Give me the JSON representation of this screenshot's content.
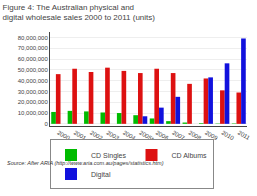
{
  "chart_data": {
    "type": "bar",
    "title": "Figure 4: The Australian physical and digital wholesale sales 2000 to 2011 (units)",
    "categories": [
      "2000",
      "2001",
      "2002",
      "2003",
      "2004",
      "2005*",
      "2006",
      "2007",
      "2008",
      "2009",
      "2010",
      "2011"
    ],
    "series": [
      {
        "name": "CD Singles",
        "color": "#00bb00",
        "values": [
          11000000,
          12000000,
          11500000,
          10500000,
          10000000,
          8000000,
          5000000,
          2500000,
          1200000,
          600000,
          300000,
          400000
        ]
      },
      {
        "name": "CD Albums",
        "color": "#dd1111",
        "values": [
          46000000,
          51000000,
          48000000,
          52000000,
          49000000,
          47000000,
          51000000,
          47000000,
          37000000,
          42000000,
          31000000,
          29000000
        ]
      },
      {
        "name": "Digital",
        "color": "#1111dd",
        "values": [
          0,
          0,
          0,
          0,
          0,
          7000000,
          15000000,
          25000000,
          0,
          43000000,
          56000000,
          79000000
        ]
      }
    ],
    "ylim": [
      -2000000,
      85000000
    ],
    "yticks": [
      0,
      {
        "value": 10000000,
        "label": "10,000,000"
      },
      {
        "value": 20000000,
        "label": "20,000,000"
      },
      {
        "value": 30000000,
        "label": "30,000,000"
      },
      {
        "value": 40000000,
        "label": "40,000,000"
      },
      {
        "value": 50000000,
        "label": "50,000,000"
      },
      {
        "value": 60000000,
        "label": "60,000,000"
      },
      {
        "value": 70000000,
        "label": "70,000,000"
      },
      {
        "value": 80000000,
        "label": "80,000,000"
      }
    ],
    "grid": true,
    "legend": "bottom",
    "annotations": [
      "Source: After ARIA (http://www.aria.com.au/pages/statistics.htm)"
    ]
  }
}
